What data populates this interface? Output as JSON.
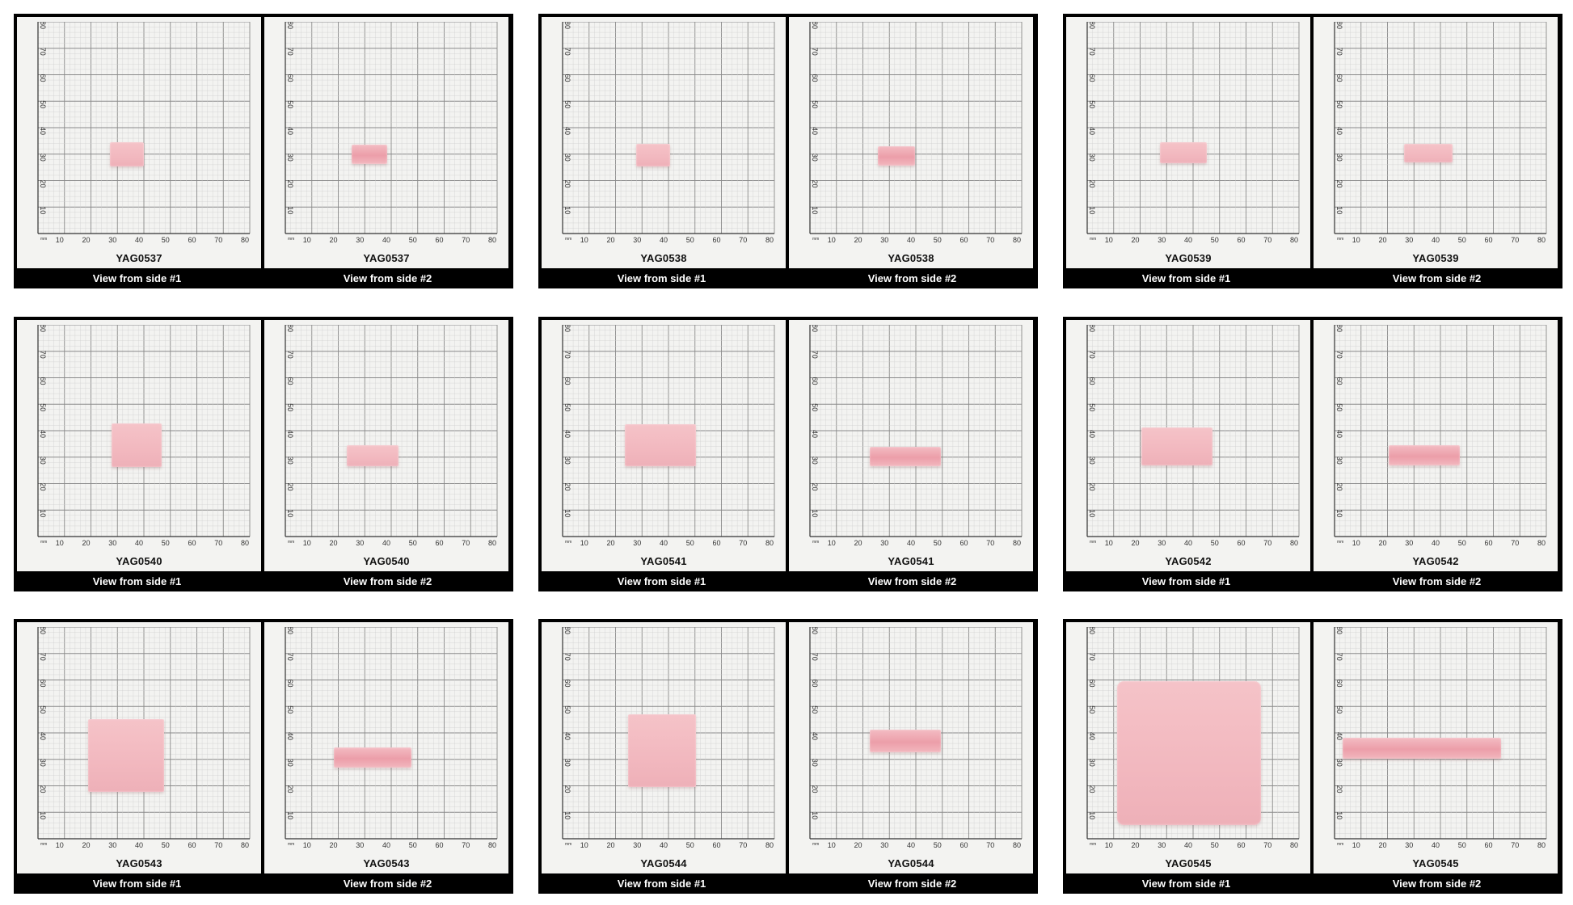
{
  "colors": {
    "frame": "#000000",
    "paper": "#f3f3f1",
    "grid_major": "#8a8a8a",
    "grid_minor": "#cfcfcf",
    "crystal": "#f2b8bf"
  },
  "scale": {
    "unit": "mm",
    "ticks": [
      "10",
      "20",
      "30",
      "40",
      "50",
      "60",
      "70",
      "80"
    ]
  },
  "samples": [
    {
      "id": "YAG0537",
      "side1": "View from side #1",
      "side2": "View from side #2"
    },
    {
      "id": "YAG0538",
      "side1": "View from side #1",
      "side2": "View from side #2"
    },
    {
      "id": "YAG0539",
      "side1": "View from side #1",
      "side2": "View from side #2"
    },
    {
      "id": "YAG0540",
      "side1": "View from side #1",
      "side2": "View from side #2"
    },
    {
      "id": "YAG0541",
      "side1": "View from side #1",
      "side2": "View from side #2"
    },
    {
      "id": "YAG0542",
      "side1": "View from side #1",
      "side2": "View from side #2"
    },
    {
      "id": "YAG0543",
      "side1": "View from side #1",
      "side2": "View from side #2"
    },
    {
      "id": "YAG0544",
      "side1": "View from side #1",
      "side2": "View from side #2"
    },
    {
      "id": "YAG0545",
      "side1": "View from side #1",
      "side2": "View from side #2"
    }
  ]
}
